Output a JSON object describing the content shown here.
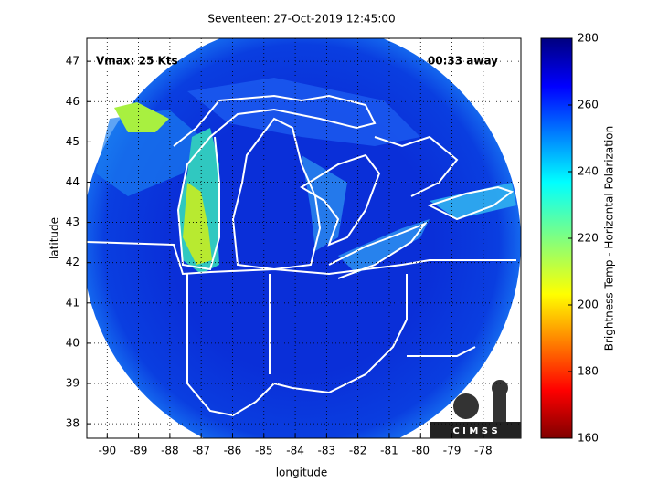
{
  "plot": {
    "title": "Seventeen: 27-Oct-2019 12:45:00",
    "xlabel": "longitude",
    "ylabel": "latitude",
    "xlim": [
      -90.65,
      -76.8
    ],
    "ylim": [
      37.64,
      47.57
    ],
    "xticks": [
      -90,
      -89,
      -88,
      -87,
      -86,
      -85,
      -84,
      -83,
      -82,
      -81,
      -80,
      -79,
      -78
    ],
    "yticks": [
      38,
      39,
      40,
      41,
      42,
      43,
      44,
      45,
      46,
      47
    ],
    "annotations": [
      "Vmax: 25 Kts",
      "00:33 away"
    ],
    "colorbar": {
      "label": "Brightness Temp - Horizontal Polarization",
      "lim": [
        160,
        280
      ],
      "ticks": [
        160,
        180,
        200,
        220,
        240,
        260,
        280
      ]
    },
    "logo": "C I M S S"
  }
}
